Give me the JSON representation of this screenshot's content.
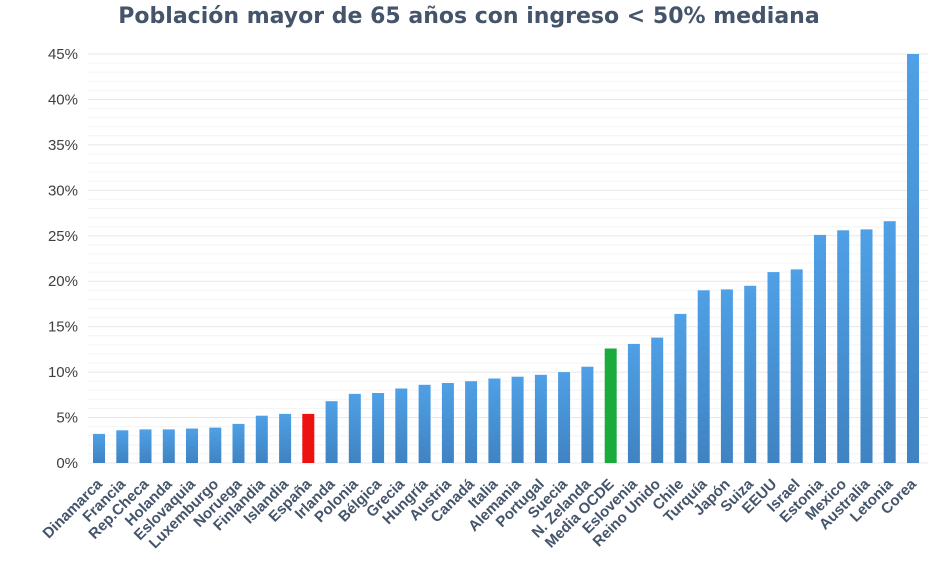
{
  "chart_data": {
    "type": "bar",
    "title": "Población mayor de 65 años con ingreso < 50% mediana",
    "xlabel": "",
    "ylabel": "",
    "ylim": [
      0,
      45
    ],
    "yticks": [
      "0%",
      "5%",
      "10%",
      "15%",
      "20%",
      "25%",
      "30%",
      "35%",
      "40%",
      "45%"
    ],
    "grid": true,
    "categories": [
      "Dinamarca",
      "Francia",
      "Rep.Checa",
      "Holanda",
      "Eslovaquia",
      "Luxemburgo",
      "Noruega",
      "Finlandia",
      "Islandia",
      "España",
      "Irlanda",
      "Polonia",
      "Bélgica",
      "Grecia",
      "Hungría",
      "Austria",
      "Canadá",
      "Italia",
      "Alemania",
      "Portugal",
      "Suecia",
      "N. Zelanda",
      "Media OCDE",
      "Eslovenia",
      "Reino Unido",
      "Chile",
      "Turquía",
      "Japón",
      "Suiza",
      "EEUU",
      "Israel",
      "Estonia",
      "Mexico",
      "Australia",
      "Letonia",
      "Corea"
    ],
    "values": [
      3.2,
      3.6,
      3.7,
      3.7,
      3.8,
      3.9,
      4.3,
      5.2,
      5.4,
      5.4,
      6.8,
      7.6,
      7.7,
      8.2,
      8.6,
      8.8,
      9.0,
      9.3,
      9.5,
      9.7,
      10.0,
      10.6,
      12.6,
      13.1,
      13.8,
      16.4,
      19.0,
      19.1,
      19.5,
      21.0,
      21.3,
      25.1,
      25.6,
      25.7,
      26.6,
      45.0
    ],
    "highlight": {
      "España": "#ee1111",
      "Media OCDE": "#1aab3c"
    },
    "bar_color": "#4a95d6"
  }
}
